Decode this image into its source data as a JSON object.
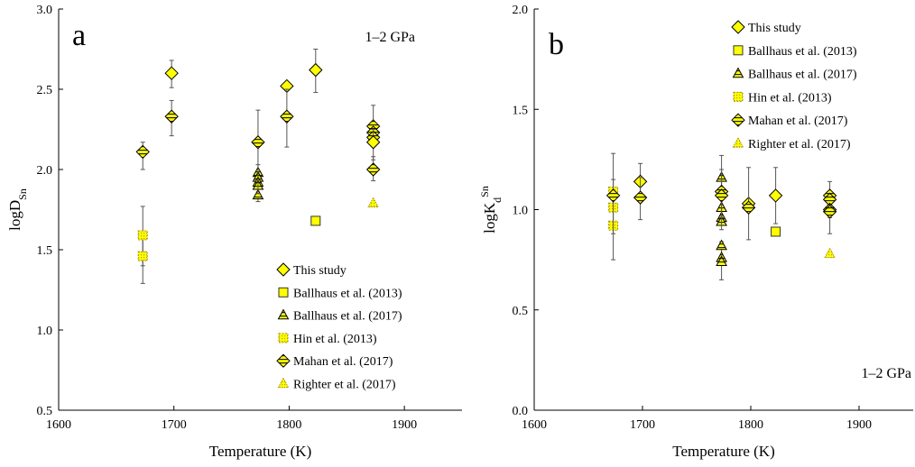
{
  "colors": {
    "marker_fill": "#ffff00",
    "marker_stroke": "#333333",
    "axis": "#000000",
    "errorbar": "#555555"
  },
  "chart_data": [
    {
      "panel_label": "a",
      "type": "scatter",
      "pressure_note": "1–2 GPa",
      "xlabel": "Temperature (K)",
      "ylabel_main": "logD",
      "ylabel_sub": "Sn",
      "ylabel_sup": "",
      "xlim": [
        1600,
        1950
      ],
      "ylim": [
        0.5,
        3.0
      ],
      "xticks": [
        "1600",
        "1700",
        "1800",
        "1900"
      ],
      "yticks": [
        "0.5",
        "1.0",
        "1.5",
        "2.0",
        "2.5",
        "3.0"
      ],
      "grid": false,
      "legend_position": "bottom-right",
      "series": [
        {
          "name": "This study",
          "marker": "diamond",
          "points": [
            [
              1698,
              2.6,
              2.51,
              2.68
            ],
            [
              1798,
              2.52,
              null,
              null
            ],
            [
              1823,
              2.62,
              2.48,
              2.75
            ]
          ]
        },
        {
          "name": "Ballhaus et al. (2013)",
          "marker": "square",
          "points": [
            [
              1823,
              1.68,
              null,
              null
            ]
          ]
        },
        {
          "name": "Ballhaus et al. (2017)",
          "marker": "triangle-striped",
          "points": [
            [
              1773,
              1.98,
              null,
              null
            ],
            [
              1773,
              1.95,
              null,
              null
            ],
            [
              1773,
              1.92,
              1.8,
              2.03
            ],
            [
              1773,
              1.9,
              null,
              null
            ],
            [
              1773,
              1.84,
              null,
              null
            ]
          ]
        },
        {
          "name": "Hin et al. (2013)",
          "marker": "square-dashed",
          "points": [
            [
              1673,
              1.59,
              1.4,
              1.77
            ],
            [
              1673,
              1.46,
              1.29,
              1.58
            ]
          ]
        },
        {
          "name": "Mahan et al. (2017)",
          "marker": "diamond-striped",
          "points": [
            [
              1673,
              2.11,
              2.0,
              2.17
            ],
            [
              1698,
              2.33,
              2.21,
              2.43
            ],
            [
              1773,
              2.17,
              1.85,
              2.37
            ],
            [
              1798,
              2.33,
              2.14,
              2.5
            ],
            [
              1873,
              2.27,
              2.18,
              2.4
            ],
            [
              1873,
              2.23,
              null,
              null
            ],
            [
              1873,
              2.2,
              null,
              null
            ],
            [
              1873,
              2.0,
              1.93,
              2.08
            ]
          ]
        },
        {
          "name": "Righter et al. (2017)",
          "marker": "triangle-dashed",
          "points": [
            [
              1873,
              1.79,
              null,
              null
            ]
          ]
        },
        {
          "name": "",
          "marker": "diamond",
          "points": [
            [
              1873,
              2.17,
              2.06,
              2.25
            ]
          ]
        }
      ]
    },
    {
      "panel_label": "b",
      "type": "scatter",
      "pressure_note": "1–2 GPa",
      "xlabel": "Temperature (K)",
      "ylabel_main": "logK",
      "ylabel_sub": "d",
      "ylabel_sup": "Sn",
      "xlim": [
        1600,
        1950
      ],
      "ylim": [
        0.0,
        2.0
      ],
      "xticks": [
        "1600",
        "1700",
        "1800",
        "1900"
      ],
      "yticks": [
        "0.0",
        "0.5",
        "1.0",
        "1.5",
        "2.0"
      ],
      "grid": false,
      "legend_position": "top-right",
      "series": [
        {
          "name": "This study",
          "marker": "diamond",
          "points": [
            [
              1698,
              1.14,
              1.06,
              1.23
            ],
            [
              1798,
              1.03,
              null,
              null
            ],
            [
              1823,
              1.07,
              0.93,
              1.21
            ]
          ]
        },
        {
          "name": "Ballhaus et al. (2013)",
          "marker": "square",
          "points": [
            [
              1823,
              0.89,
              null,
              null
            ]
          ]
        },
        {
          "name": "Ballhaus et al. (2017)",
          "marker": "triangle-striped",
          "points": [
            [
              1773,
              1.16,
              null,
              null
            ],
            [
              1773,
              1.01,
              null,
              null
            ],
            [
              1773,
              0.96,
              null,
              null
            ],
            [
              1773,
              0.94,
              null,
              null
            ],
            [
              1773,
              0.82,
              null,
              null
            ],
            [
              1773,
              0.76,
              null,
              null
            ],
            [
              1773,
              0.74,
              0.65,
              0.84
            ]
          ]
        },
        {
          "name": "Hin et al. (2013)",
          "marker": "square-dashed",
          "points": [
            [
              1673,
              1.09,
              null,
              null
            ],
            [
              1673,
              1.01,
              0.88,
              1.15
            ],
            [
              1673,
              0.92,
              null,
              null
            ]
          ]
        },
        {
          "name": "Mahan et al. (2017)",
          "marker": "diamond-striped",
          "points": [
            [
              1673,
              1.07,
              0.75,
              1.28
            ],
            [
              1698,
              1.06,
              0.95,
              1.16
            ],
            [
              1773,
              1.09,
              0.96,
              1.27
            ],
            [
              1773,
              1.07,
              0.9,
              1.2
            ],
            [
              1798,
              1.01,
              0.85,
              1.21
            ],
            [
              1873,
              1.07,
              null,
              null
            ],
            [
              1873,
              1.05,
              0.96,
              1.14
            ],
            [
              1873,
              1.0,
              null,
              null
            ],
            [
              1873,
              0.99,
              0.88,
              1.09
            ]
          ]
        },
        {
          "name": "Righter et al. (2017)",
          "marker": "triangle-dashed",
          "points": [
            [
              1873,
              0.78,
              null,
              null
            ]
          ]
        }
      ]
    }
  ]
}
